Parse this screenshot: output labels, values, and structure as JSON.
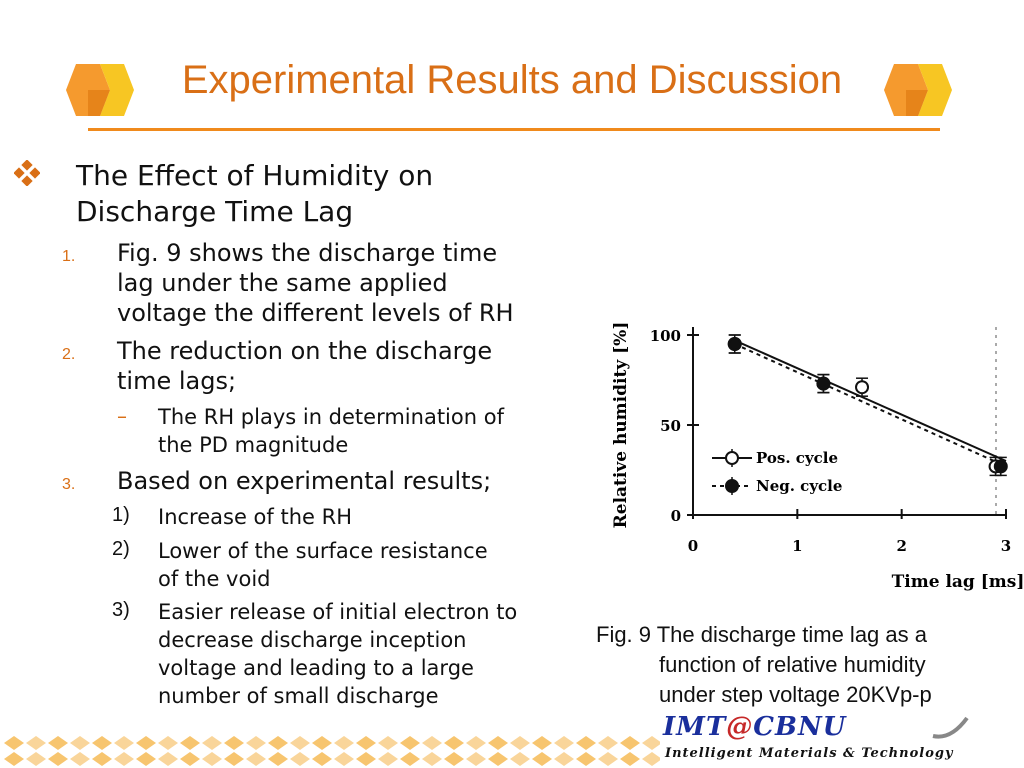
{
  "slide": {
    "title": "Experimental Results and Discussion",
    "colors": {
      "title": "#d96f16",
      "rule": "#f08a1c",
      "bullet": "#d96f16"
    }
  },
  "content": {
    "heading_line1": "The Effect of Humidity on",
    "heading_line2": "Discharge Time Lag",
    "items": [
      {
        "num": "1.",
        "lines": [
          "Fig. 9 shows the discharge time",
          "lag under the same applied",
          "voltage the different levels of RH"
        ]
      },
      {
        "num": "2.",
        "lines": [
          "The reduction on the discharge",
          "time lags;"
        ],
        "sub": {
          "marker": "–",
          "lines": [
            "The RH plays in determination of",
            "the PD magnitude"
          ]
        }
      },
      {
        "num": "3.",
        "lines": [
          "Based on experimental results;"
        ],
        "subs": [
          {
            "num": "1)",
            "lines": [
              "Increase of the RH"
            ]
          },
          {
            "num": "2)",
            "lines": [
              "Lower of the surface resistance",
              "of the void"
            ]
          },
          {
            "num": "3)",
            "lines": [
              "Easier release of initial electron to",
              "decrease discharge inception",
              "voltage and leading to a large",
              "number of small discharge"
            ]
          }
        ]
      }
    ]
  },
  "chart_data": {
    "type": "scatter",
    "xlabel": "Time lag [ms]",
    "ylabel": "Relative humidity [%]",
    "xlim": [
      0,
      3
    ],
    "ylim": [
      0,
      100
    ],
    "xticks": [
      "0",
      "1",
      "2",
      "3"
    ],
    "yticks": [
      "0",
      "50",
      "100"
    ],
    "legend_position": "lower-left",
    "series": [
      {
        "name": "Pos. cycle",
        "marker": "open-circle",
        "line": "solid",
        "x": [
          0.4,
          1.25,
          1.62,
          2.9
        ],
        "y": [
          95,
          73,
          71,
          27
        ]
      },
      {
        "name": "Neg. cycle",
        "marker": "filled-circle",
        "line": "dashed",
        "x": [
          0.4,
          1.25,
          2.95
        ],
        "y": [
          95,
          73,
          27
        ]
      }
    ],
    "fit_lines": [
      {
        "series": "Pos. cycle",
        "x": [
          0.4,
          3.0
        ],
        "y": [
          97,
          30
        ]
      },
      {
        "series": "Neg. cycle",
        "x": [
          0.4,
          3.0
        ],
        "y": [
          95,
          27
        ]
      }
    ]
  },
  "caption": {
    "line1": "Fig. 9 The discharge time lag as a",
    "line2": "function of relative humidity",
    "line3": "under step voltage 20KVp-p"
  },
  "logo": {
    "left": "IMT",
    "at": "@",
    "right": "CBNU",
    "sub": "Intelligent Materials & Technology"
  }
}
